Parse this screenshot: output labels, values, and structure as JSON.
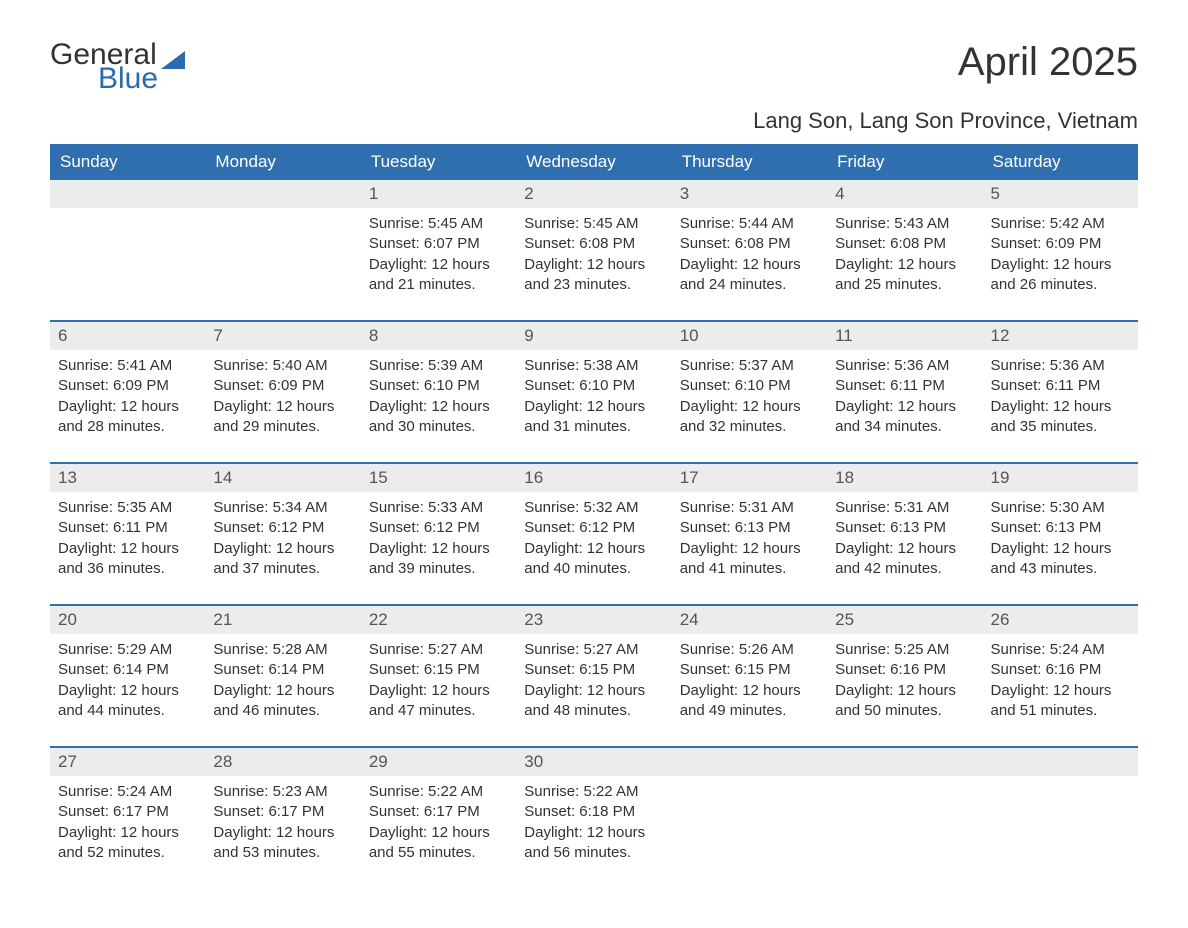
{
  "brand": {
    "part1": "General",
    "part2": "Blue"
  },
  "title": "April 2025",
  "location": "Lang Son, Lang Son Province, Vietnam",
  "colors": {
    "header_bg": "#2f6fb0",
    "header_text": "#ffffff",
    "daynum_bg": "#ececec",
    "week_border": "#2f6fb0",
    "text": "#333333",
    "brand_blue": "#2a6bb0",
    "background": "#ffffff"
  },
  "typography": {
    "title_fontsize": 40,
    "location_fontsize": 22,
    "dayname_fontsize": 17,
    "daynum_fontsize": 17,
    "body_fontsize": 15,
    "font_family": "Arial"
  },
  "day_names": [
    "Sunday",
    "Monday",
    "Tuesday",
    "Wednesday",
    "Thursday",
    "Friday",
    "Saturday"
  ],
  "weeks": [
    [
      null,
      null,
      {
        "n": "1",
        "sunrise": "Sunrise: 5:45 AM",
        "sunset": "Sunset: 6:07 PM",
        "day1": "Daylight: 12 hours",
        "day2": "and 21 minutes."
      },
      {
        "n": "2",
        "sunrise": "Sunrise: 5:45 AM",
        "sunset": "Sunset: 6:08 PM",
        "day1": "Daylight: 12 hours",
        "day2": "and 23 minutes."
      },
      {
        "n": "3",
        "sunrise": "Sunrise: 5:44 AM",
        "sunset": "Sunset: 6:08 PM",
        "day1": "Daylight: 12 hours",
        "day2": "and 24 minutes."
      },
      {
        "n": "4",
        "sunrise": "Sunrise: 5:43 AM",
        "sunset": "Sunset: 6:08 PM",
        "day1": "Daylight: 12 hours",
        "day2": "and 25 minutes."
      },
      {
        "n": "5",
        "sunrise": "Sunrise: 5:42 AM",
        "sunset": "Sunset: 6:09 PM",
        "day1": "Daylight: 12 hours",
        "day2": "and 26 minutes."
      }
    ],
    [
      {
        "n": "6",
        "sunrise": "Sunrise: 5:41 AM",
        "sunset": "Sunset: 6:09 PM",
        "day1": "Daylight: 12 hours",
        "day2": "and 28 minutes."
      },
      {
        "n": "7",
        "sunrise": "Sunrise: 5:40 AM",
        "sunset": "Sunset: 6:09 PM",
        "day1": "Daylight: 12 hours",
        "day2": "and 29 minutes."
      },
      {
        "n": "8",
        "sunrise": "Sunrise: 5:39 AM",
        "sunset": "Sunset: 6:10 PM",
        "day1": "Daylight: 12 hours",
        "day2": "and 30 minutes."
      },
      {
        "n": "9",
        "sunrise": "Sunrise: 5:38 AM",
        "sunset": "Sunset: 6:10 PM",
        "day1": "Daylight: 12 hours",
        "day2": "and 31 minutes."
      },
      {
        "n": "10",
        "sunrise": "Sunrise: 5:37 AM",
        "sunset": "Sunset: 6:10 PM",
        "day1": "Daylight: 12 hours",
        "day2": "and 32 minutes."
      },
      {
        "n": "11",
        "sunrise": "Sunrise: 5:36 AM",
        "sunset": "Sunset: 6:11 PM",
        "day1": "Daylight: 12 hours",
        "day2": "and 34 minutes."
      },
      {
        "n": "12",
        "sunrise": "Sunrise: 5:36 AM",
        "sunset": "Sunset: 6:11 PM",
        "day1": "Daylight: 12 hours",
        "day2": "and 35 minutes."
      }
    ],
    [
      {
        "n": "13",
        "sunrise": "Sunrise: 5:35 AM",
        "sunset": "Sunset: 6:11 PM",
        "day1": "Daylight: 12 hours",
        "day2": "and 36 minutes."
      },
      {
        "n": "14",
        "sunrise": "Sunrise: 5:34 AM",
        "sunset": "Sunset: 6:12 PM",
        "day1": "Daylight: 12 hours",
        "day2": "and 37 minutes."
      },
      {
        "n": "15",
        "sunrise": "Sunrise: 5:33 AM",
        "sunset": "Sunset: 6:12 PM",
        "day1": "Daylight: 12 hours",
        "day2": "and 39 minutes."
      },
      {
        "n": "16",
        "sunrise": "Sunrise: 5:32 AM",
        "sunset": "Sunset: 6:12 PM",
        "day1": "Daylight: 12 hours",
        "day2": "and 40 minutes."
      },
      {
        "n": "17",
        "sunrise": "Sunrise: 5:31 AM",
        "sunset": "Sunset: 6:13 PM",
        "day1": "Daylight: 12 hours",
        "day2": "and 41 minutes."
      },
      {
        "n": "18",
        "sunrise": "Sunrise: 5:31 AM",
        "sunset": "Sunset: 6:13 PM",
        "day1": "Daylight: 12 hours",
        "day2": "and 42 minutes."
      },
      {
        "n": "19",
        "sunrise": "Sunrise: 5:30 AM",
        "sunset": "Sunset: 6:13 PM",
        "day1": "Daylight: 12 hours",
        "day2": "and 43 minutes."
      }
    ],
    [
      {
        "n": "20",
        "sunrise": "Sunrise: 5:29 AM",
        "sunset": "Sunset: 6:14 PM",
        "day1": "Daylight: 12 hours",
        "day2": "and 44 minutes."
      },
      {
        "n": "21",
        "sunrise": "Sunrise: 5:28 AM",
        "sunset": "Sunset: 6:14 PM",
        "day1": "Daylight: 12 hours",
        "day2": "and 46 minutes."
      },
      {
        "n": "22",
        "sunrise": "Sunrise: 5:27 AM",
        "sunset": "Sunset: 6:15 PM",
        "day1": "Daylight: 12 hours",
        "day2": "and 47 minutes."
      },
      {
        "n": "23",
        "sunrise": "Sunrise: 5:27 AM",
        "sunset": "Sunset: 6:15 PM",
        "day1": "Daylight: 12 hours",
        "day2": "and 48 minutes."
      },
      {
        "n": "24",
        "sunrise": "Sunrise: 5:26 AM",
        "sunset": "Sunset: 6:15 PM",
        "day1": "Daylight: 12 hours",
        "day2": "and 49 minutes."
      },
      {
        "n": "25",
        "sunrise": "Sunrise: 5:25 AM",
        "sunset": "Sunset: 6:16 PM",
        "day1": "Daylight: 12 hours",
        "day2": "and 50 minutes."
      },
      {
        "n": "26",
        "sunrise": "Sunrise: 5:24 AM",
        "sunset": "Sunset: 6:16 PM",
        "day1": "Daylight: 12 hours",
        "day2": "and 51 minutes."
      }
    ],
    [
      {
        "n": "27",
        "sunrise": "Sunrise: 5:24 AM",
        "sunset": "Sunset: 6:17 PM",
        "day1": "Daylight: 12 hours",
        "day2": "and 52 minutes."
      },
      {
        "n": "28",
        "sunrise": "Sunrise: 5:23 AM",
        "sunset": "Sunset: 6:17 PM",
        "day1": "Daylight: 12 hours",
        "day2": "and 53 minutes."
      },
      {
        "n": "29",
        "sunrise": "Sunrise: 5:22 AM",
        "sunset": "Sunset: 6:17 PM",
        "day1": "Daylight: 12 hours",
        "day2": "and 55 minutes."
      },
      {
        "n": "30",
        "sunrise": "Sunrise: 5:22 AM",
        "sunset": "Sunset: 6:18 PM",
        "day1": "Daylight: 12 hours",
        "day2": "and 56 minutes."
      },
      null,
      null,
      null
    ]
  ]
}
